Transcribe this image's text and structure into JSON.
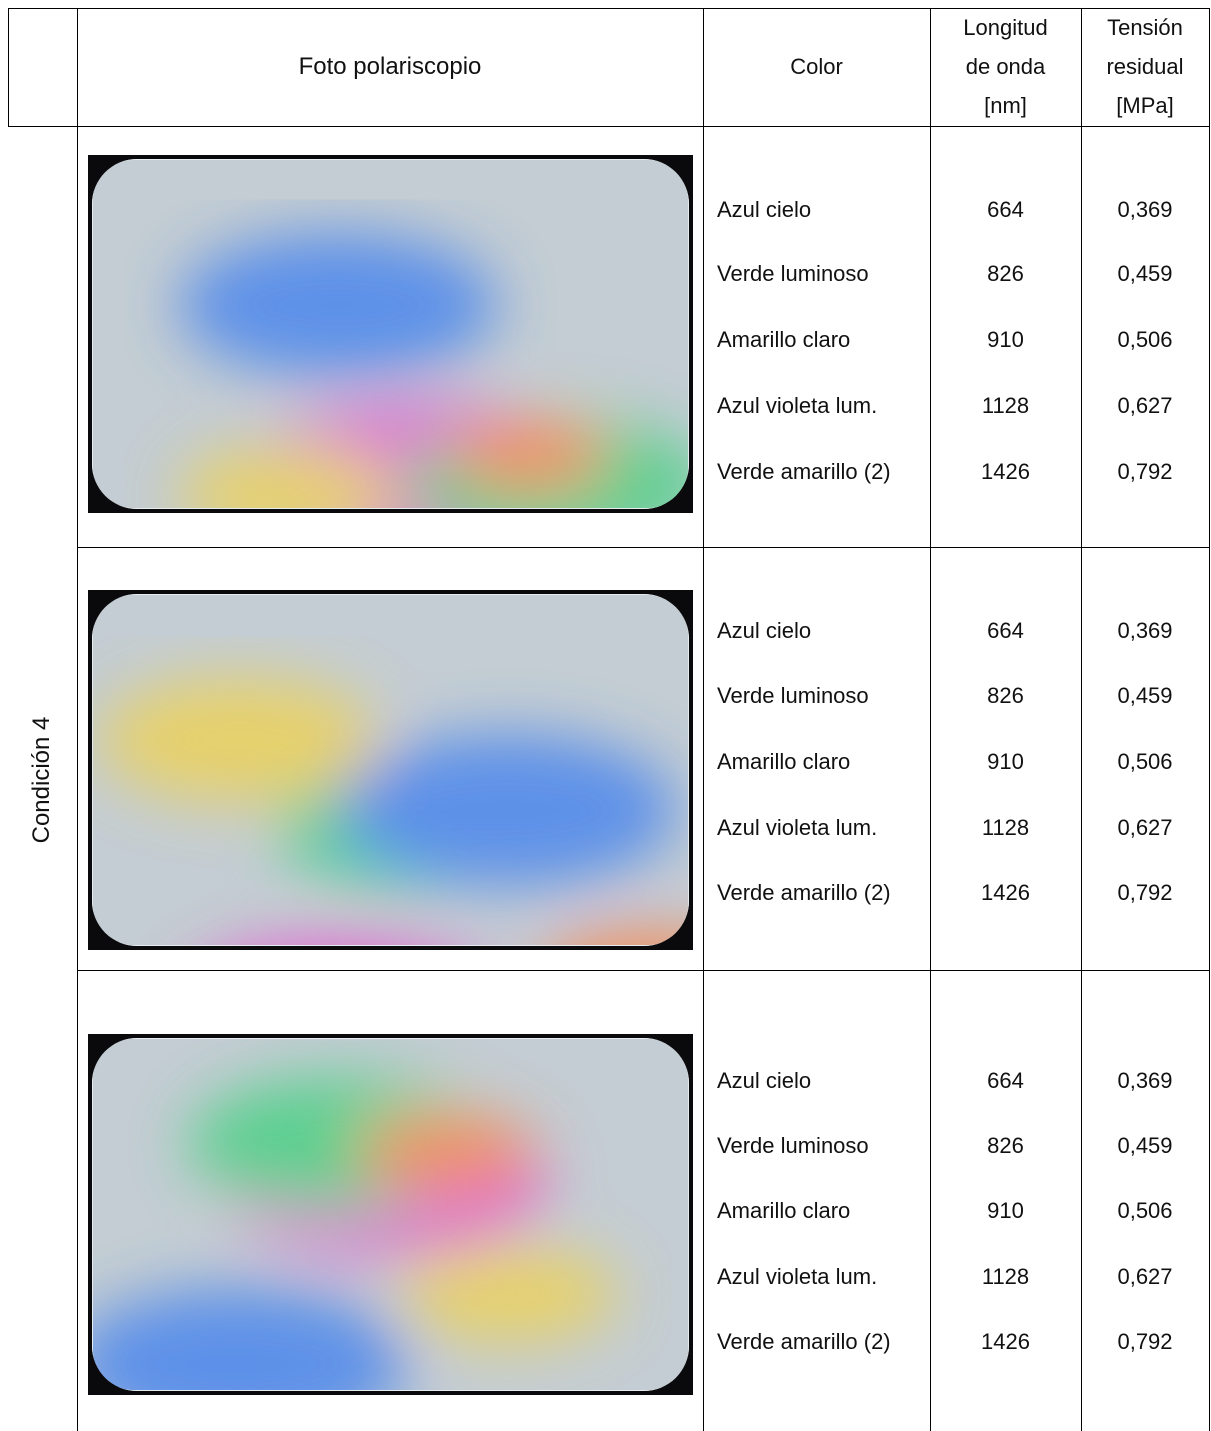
{
  "table": {
    "header": [
      {
        "lines": [
          "Foto polariscopio"
        ]
      },
      {
        "lines": [
          "Color"
        ]
      },
      {
        "lines": [
          "Longitud",
          "de onda",
          "[nm]"
        ]
      },
      {
        "lines": [
          "Tensión",
          "residual",
          "[MPa]"
        ]
      }
    ],
    "condition": "Condición 4",
    "groups": [
      {
        "rows": [
          [
            "Azul cielo",
            664,
            "0,369"
          ],
          [
            "Verde luminoso",
            826,
            "0,459"
          ],
          [
            "Amarillo claro",
            910,
            "0,506"
          ],
          [
            "Azul violeta lum.",
            1128,
            "0,627"
          ],
          [
            "Verde amarillo (2)",
            1426,
            "0,792"
          ]
        ]
      },
      {
        "rows": [
          [
            "Azul cielo",
            664,
            "0,369"
          ],
          [
            "Verde luminoso",
            826,
            "0,459"
          ],
          [
            "Amarillo claro",
            910,
            "0,506"
          ],
          [
            "Azul violeta lum.",
            1128,
            "0,627"
          ],
          [
            "Verde amarillo (2)",
            1426,
            "0,792"
          ]
        ]
      },
      {
        "rows": [
          [
            "Azul cielo",
            664,
            "0,369"
          ],
          [
            "Verde luminoso",
            826,
            "0,459"
          ],
          [
            "Amarillo claro",
            910,
            "0,506"
          ],
          [
            "Azul violeta lum.",
            1128,
            "0,627"
          ],
          [
            "Verde amarillo (2)",
            1426,
            "0,792"
          ]
        ]
      }
    ]
  }
}
